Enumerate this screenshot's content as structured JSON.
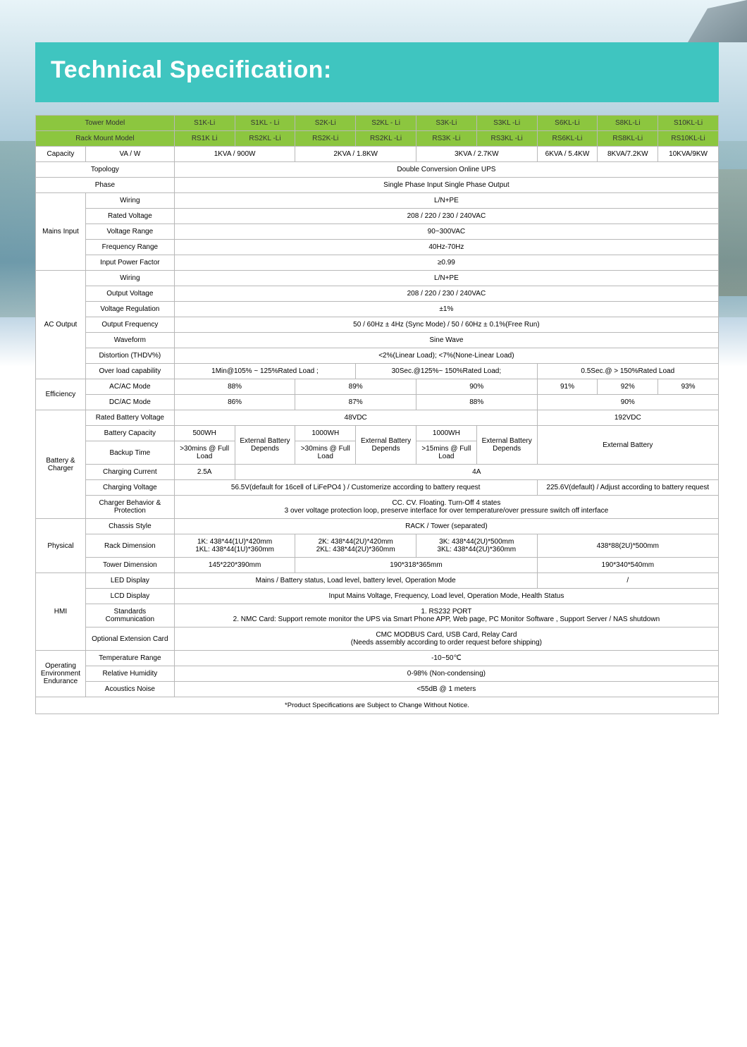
{
  "title": "Technical Specification:",
  "colors": {
    "header_bg": "#8cc63f",
    "title_bg": "#3fc5c0",
    "border": "#b8b8b8"
  },
  "rows": {
    "tower_label": "Tower Model",
    "tower": [
      "S1K-Li",
      "S1KL - Li",
      "S2K-Li",
      "S2KL - Li",
      "S3K-Li",
      "S3KL -Li",
      "S6KL-Li",
      "S8KL-Li",
      "S10KL-Li"
    ],
    "rack_label": "Rack Mount Model",
    "rack": [
      "RS1K Li",
      "RS2KL -Li",
      "RS2K-Li",
      "RS2KL -Li",
      "RS3K -Li",
      "RS3KL -Li",
      "RS6KL-Li",
      "RS8KL-Li",
      "RS10KL-Li"
    ],
    "capacity_label": "Capacity",
    "capacity_sub": "VA / W",
    "capacity": [
      "1KVA / 900W",
      "2KVA / 1.8KW",
      "3KVA / 2.7KW",
      "6KVA / 5.4KW",
      "8KVA/7.2KW",
      "10KVA/9KW"
    ],
    "topology_label": "Topology",
    "topology": "Double Conversion Online UPS",
    "phase_label": "Phase",
    "phase": "Single Phase Input Single Phase Output",
    "mains_label": "Mains Input",
    "mains": {
      "wiring_l": "Wiring",
      "wiring": "L/N+PE",
      "rated_l": "Rated Voltage",
      "rated": "208 / 220 / 230 / 240VAC",
      "range_l": "Voltage Range",
      "range": "90~300VAC",
      "freq_l": "Frequency Range",
      "freq": "40Hz-70Hz",
      "ipf_l": "Input Power Factor",
      "ipf": "≥0.99"
    },
    "ac_label": "AC Output",
    "ac": {
      "wiring_l": "Wiring",
      "wiring": "L/N+PE",
      "ov_l": "Output Voltage",
      "ov": "208 / 220 / 230 / 240VAC",
      "vr_l": "Voltage Regulation",
      "vr": "±1%",
      "of_l": "Output Frequency",
      "of": "50 / 60Hz ± 4Hz (Sync Mode)    /   50 / 60Hz ± 0.1%(Free Run)",
      "wf_l": "Waveform",
      "wf": "Sine Wave",
      "dist_l": "Distortion (THDV%)",
      "dist": "<2%(Linear Load);       <7%(None-Linear Load)",
      "ol_l": "Over load capability",
      "ol_a": "1Min@105% ~ 125%Rated Load ;",
      "ol_b": "30Sec.@125%~ 150%Rated Load;",
      "ol_c": "0.5Sec.@ > 150%Rated Load"
    },
    "eff_label": "Efficiency",
    "eff": {
      "ac_l": "AC/AC Mode",
      "ac": [
        "88%",
        "89%",
        "90%",
        "91%",
        "92%",
        "93%"
      ],
      "dc_l": "DC/AC Mode",
      "dc": [
        "86%",
        "87%",
        "88%",
        "90%"
      ]
    },
    "bat_label": "Battery & Charger",
    "bat": {
      "rbv_l": "Rated Battery Voltage",
      "rbv_a": "48VDC",
      "rbv_b": "192VDC",
      "cap_l": "Battery Capacity",
      "cap": [
        "500WH",
        "1000WH",
        "1000WH"
      ],
      "ext": "External Battery Depends",
      "ext_full": "External Battery",
      "bu_l": "Backup Time",
      "bu": [
        ">30mins @ Full Load",
        ">30mins @ Full Load",
        ">15mins @ Full Load"
      ],
      "cc_l": "Charging Current",
      "cc_a": "2.5A",
      "cc_b": "4A",
      "cv_l": "Charging Voltage",
      "cv_a": "56.5V(default for 16cell of LiFePO4 ) / Customerize according to battery request",
      "cv_b": "225.6V(default) / Adjust according to battery request",
      "cb_l": "Charger Behavior & Protection",
      "cb_a": "CC. CV. Floating. Turn-Off 4 states",
      "cb_b": "3 over voltage protection loop, preserve interface for over temperature/over pressure switch off interface"
    },
    "phys_label": "Physical",
    "phys": {
      "cs_l": "Chassis Style",
      "cs": "RACK  / Tower   (separated)",
      "rd_l": "Rack Dimension",
      "rd_a": "1K:   438*44(1U)*420mm\n1KL: 438*44(1U)*360mm",
      "rd_b": "2K: 438*44(2U)*420mm\n2KL: 438*44(2U)*360mm",
      "rd_c": "3K: 438*44(2U)*500mm\n3KL: 438*44(2U)*360mm",
      "rd_d": "438*88(2U)*500mm",
      "td_l": "Tower Dimension",
      "td_a": "145*220*390mm",
      "td_b": "190*318*365mm",
      "td_c": "190*340*540mm"
    },
    "hmi_label": "HMI",
    "hmi": {
      "led_l": "LED Display",
      "led_a": "Mains / Battery status, Load level, battery level, Operation Mode",
      "led_b": "/",
      "lcd_l": "LCD Display",
      "lcd": "Input Mains Voltage, Frequency, Load level, Operation Mode, Health Status",
      "sc_l": "Standards Communication",
      "sc_a": "1. RS232 PORT",
      "sc_b": "2. NMC Card:  Support remote monitor the UPS via Smart Phone APP, Web page,  PC Monitor Software , Support Server / NAS shutdown",
      "oec_l": "Optional Extension Card",
      "oec_a": "CMC MODBUS Card, USB Card, Relay Card",
      "oec_b": "(Needs assembly according to order request before shipping)"
    },
    "env_label": "Operating Environment Endurance",
    "env": {
      "tr_l": "Temperature Range",
      "tr": "-10~50℃",
      "rh_l": "Relative Humidity",
      "rh": "0-98%  (Non-condensing)",
      "an_l": "Acoustics Noise",
      "an": "<55dB @ 1 meters"
    },
    "note": "*Product Specifications are Subject to Change Without Notice."
  }
}
